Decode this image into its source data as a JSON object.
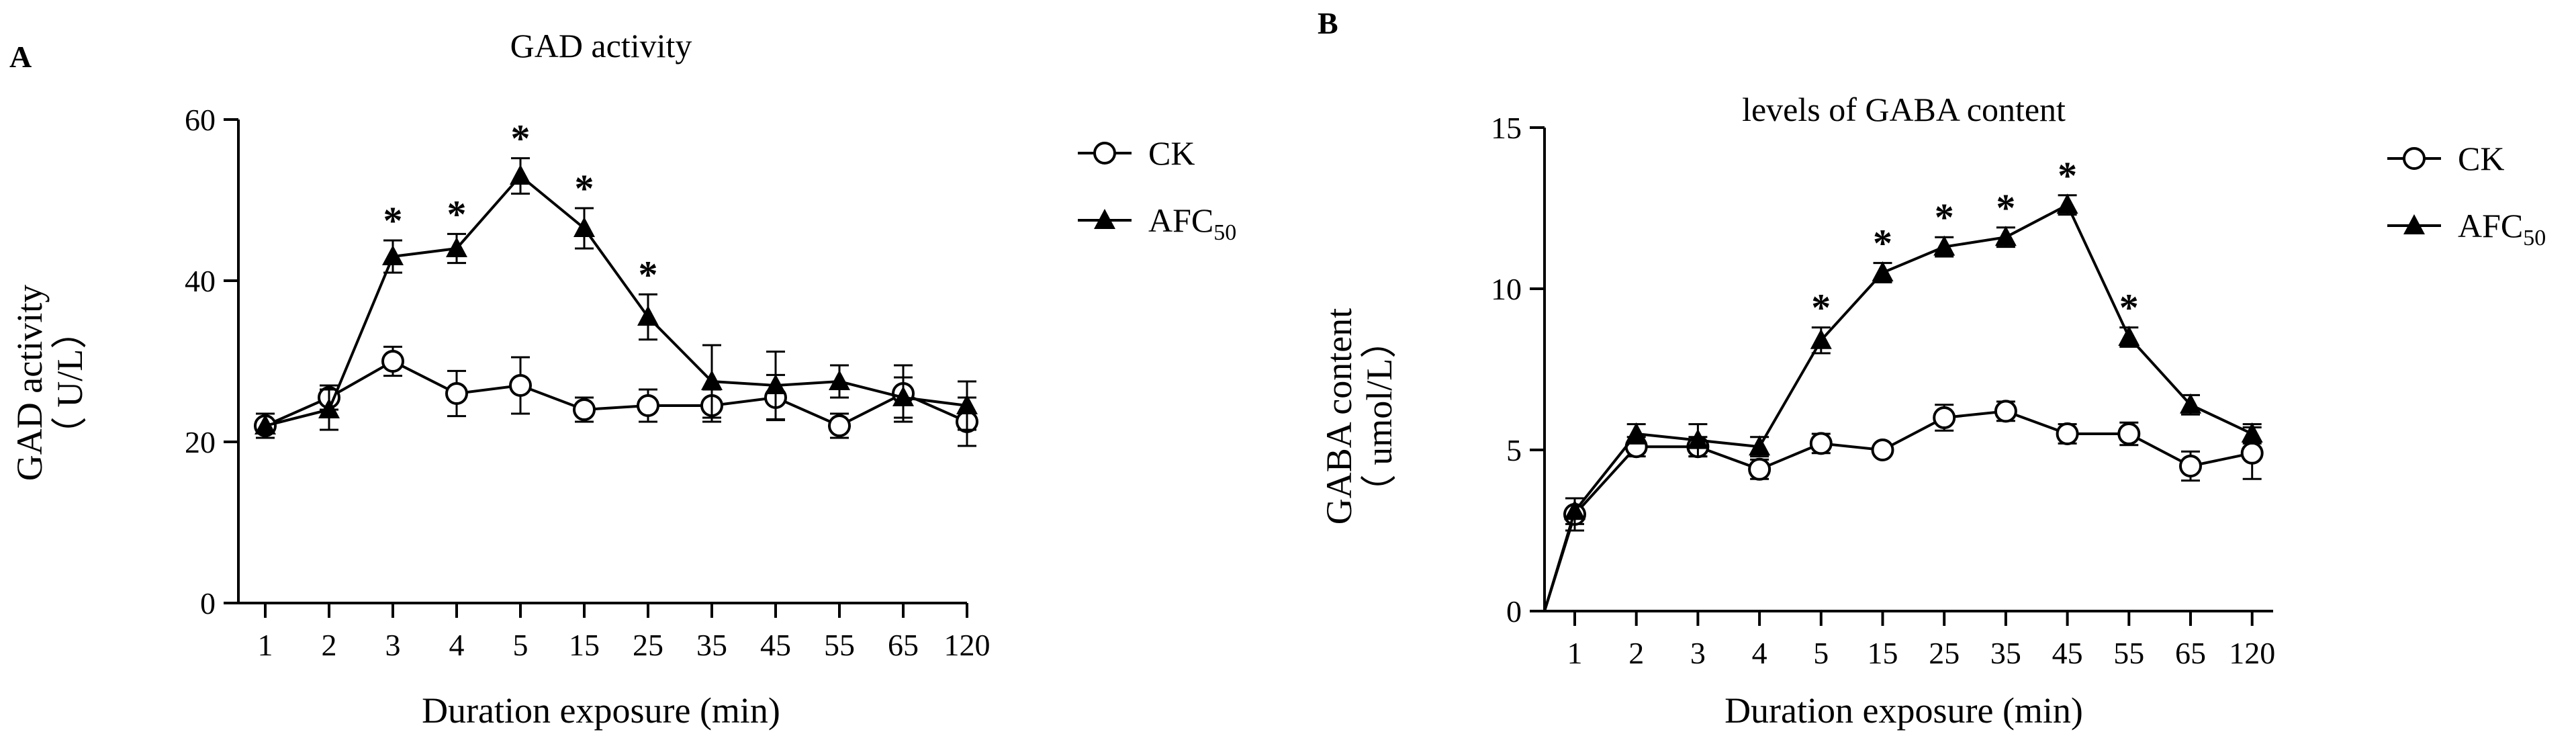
{
  "chart_data": [
    {
      "panel": "A",
      "type": "line",
      "title": "GAD activity",
      "xlabel": "Duration exposure (min)",
      "ylabel": "GAD activity",
      "ylabel_unit": "（ U/L）",
      "categories": [
        "1",
        "2",
        "3",
        "4",
        "5",
        "15",
        "25",
        "35",
        "45",
        "55",
        "65",
        "120"
      ],
      "ylim": [
        0,
        60
      ],
      "yticks": [
        "0",
        "20",
        "40",
        "60"
      ],
      "grid": false,
      "legend_position": "right",
      "series": [
        {
          "name": "CK",
          "marker": "open-circle",
          "values": [
            22,
            25.5,
            30,
            26,
            27,
            24,
            24.5,
            24.5,
            25.5,
            22,
            26,
            22.5
          ],
          "errors": [
            1.5,
            1.5,
            1.8,
            2.8,
            3.5,
            1.5,
            2.0,
            2.0,
            2.8,
            1.5,
            3.5,
            3.0
          ]
        },
        {
          "name": "AFC",
          "name_subscript": "50",
          "marker": "filled-triangle",
          "values": [
            22,
            24,
            43,
            44,
            53,
            46.5,
            35.5,
            27.5,
            27,
            27.5,
            25.5,
            24.5
          ],
          "errors": [
            1.5,
            2.5,
            2.0,
            1.8,
            2.2,
            2.5,
            2.8,
            4.5,
            4.2,
            2.0,
            2.5,
            3.0
          ]
        }
      ],
      "annotations": [
        {
          "category": "3",
          "text": "*"
        },
        {
          "category": "4",
          "text": "*"
        },
        {
          "category": "5",
          "text": "*"
        },
        {
          "category": "15",
          "text": "*"
        },
        {
          "category": "25",
          "text": "*"
        }
      ]
    },
    {
      "panel": "B",
      "type": "line",
      "title": "levels of GABA content",
      "xlabel": "Duration exposure (min)",
      "ylabel": "GABA content",
      "ylabel_unit": "（ umol/L）",
      "categories": [
        "1",
        "2",
        "3",
        "4",
        "5",
        "15",
        "25",
        "35",
        "45",
        "55",
        "65",
        "120"
      ],
      "ylim": [
        0,
        15
      ],
      "yticks": [
        "0",
        "5",
        "10",
        "15"
      ],
      "grid": false,
      "legend_position": "right",
      "origin_point": [
        0,
        0
      ],
      "series": [
        {
          "name": "CK",
          "marker": "open-circle",
          "values": [
            3.0,
            5.1,
            5.1,
            4.4,
            5.2,
            5.0,
            6.0,
            6.2,
            5.5,
            5.5,
            4.5,
            4.9
          ],
          "errors": [
            0.5,
            0.3,
            0.3,
            0.3,
            0.3,
            0.15,
            0.4,
            0.3,
            0.3,
            0.35,
            0.45,
            0.8
          ]
        },
        {
          "name": "AFC",
          "name_subscript": "50",
          "marker": "filled-triangle",
          "values": [
            3.1,
            5.5,
            5.3,
            5.1,
            8.4,
            10.5,
            11.3,
            11.6,
            12.6,
            8.5,
            6.4,
            5.5
          ],
          "errors": [
            0.4,
            0.3,
            0.5,
            0.3,
            0.4,
            0.3,
            0.3,
            0.3,
            0.3,
            0.3,
            0.3,
            0.3
          ]
        }
      ],
      "annotations": [
        {
          "category": "5",
          "text": "*"
        },
        {
          "category": "15",
          "text": "*"
        },
        {
          "category": "25",
          "text": "*"
        },
        {
          "category": "35",
          "text": "*"
        },
        {
          "category": "45",
          "text": "*"
        },
        {
          "category": "55",
          "text": "*"
        }
      ]
    }
  ]
}
